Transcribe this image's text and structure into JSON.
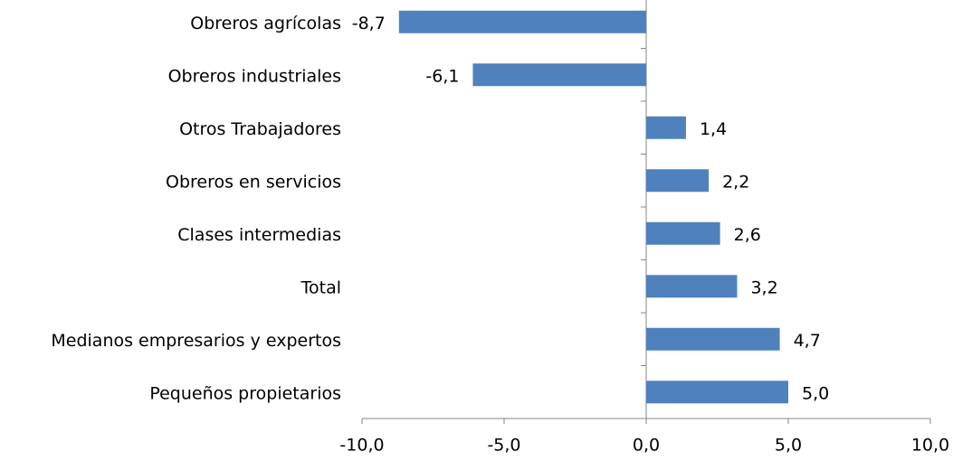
{
  "chart_data": {
    "type": "bar",
    "orientation": "horizontal",
    "categories": [
      "Obreros agrícolas",
      "Obreros industriales",
      "Otros Trabajadores",
      "Obreros en servicios",
      "Clases intermedias",
      "Total",
      "Medianos empresarios y expertos",
      "Pequeños propietarios"
    ],
    "values": [
      -8.7,
      -6.1,
      1.4,
      2.2,
      2.6,
      3.2,
      4.7,
      5.0
    ],
    "value_labels": [
      "-8,7",
      "-6,1",
      "1,4",
      "2,2",
      "2,6",
      "3,2",
      "4,7",
      "5,0"
    ],
    "color": "#4f81bd",
    "xlim": [
      -10,
      10
    ],
    "xticks": [
      {
        "value": -10,
        "label": "-10,0"
      },
      {
        "value": -5,
        "label": "-5,0"
      },
      {
        "value": 0,
        "label": "0,0"
      },
      {
        "value": 5,
        "label": "5,0"
      },
      {
        "value": 10,
        "label": "10,0"
      }
    ],
    "grid": false
  }
}
